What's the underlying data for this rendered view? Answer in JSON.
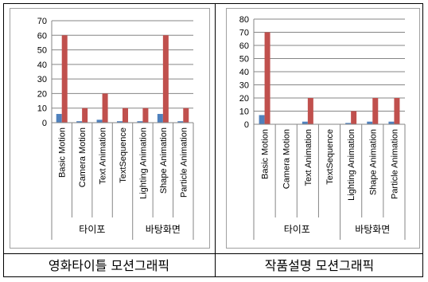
{
  "chart_data": [
    {
      "type": "bar",
      "categories": [
        "Basic Motion",
        "Camera Motion",
        "Text Animation",
        "TextSequence",
        "Lighting Animation",
        "Shape Animation",
        "Particle Animation"
      ],
      "groups": [
        {
          "label": "타이포",
          "count": 4
        },
        {
          "label": "바탕화면",
          "count": 3
        }
      ],
      "series": [
        {
          "values": [
            6,
            1,
            2,
            1,
            1,
            6,
            1
          ],
          "color": "#4f81bd"
        },
        {
          "values": [
            60,
            10,
            20,
            10,
            10,
            60,
            10
          ],
          "color": "#c0504d"
        }
      ],
      "ylim": [
        0,
        70
      ],
      "yticks": [
        0,
        10,
        20,
        30,
        40,
        50,
        60,
        70
      ],
      "grid": true,
      "caption": "영화타이틀 모션그래픽"
    },
    {
      "type": "bar",
      "categories": [
        "Basic Motion",
        "Camera Motion",
        "Text Animation",
        "TextSequence",
        "Lighting Animation",
        "Shape Animation",
        "Particle Animation"
      ],
      "groups": [
        {
          "label": "타이포",
          "count": 4
        },
        {
          "label": "바탕화면",
          "count": 3
        }
      ],
      "series": [
        {
          "values": [
            7,
            0,
            2,
            0,
            1,
            2,
            2
          ],
          "color": "#4f81bd"
        },
        {
          "values": [
            70,
            0,
            20,
            0,
            10,
            20,
            20
          ],
          "color": "#c0504d"
        }
      ],
      "ylim": [
        0,
        80
      ],
      "yticks": [
        0,
        10,
        20,
        30,
        40,
        50,
        60,
        70,
        80
      ],
      "grid": true,
      "caption": "작품설명 모션그래픽"
    }
  ]
}
